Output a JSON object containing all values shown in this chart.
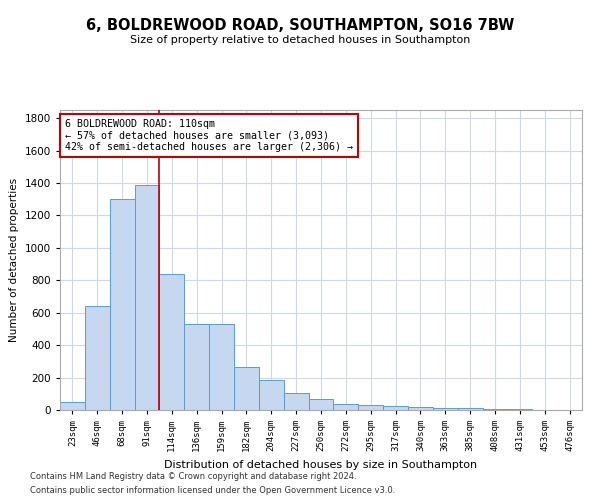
{
  "title": "6, BOLDREWOOD ROAD, SOUTHAMPTON, SO16 7BW",
  "subtitle": "Size of property relative to detached houses in Southampton",
  "xlabel": "Distribution of detached houses by size in Southampton",
  "ylabel": "Number of detached properties",
  "property_label": "6 BOLDREWOOD ROAD: 110sqm",
  "annotation_line1": "← 57% of detached houses are smaller (3,093)",
  "annotation_line2": "42% of semi-detached houses are larger (2,306) →",
  "footer_line1": "Contains HM Land Registry data © Crown copyright and database right 2024.",
  "footer_line2": "Contains public sector information licensed under the Open Government Licence v3.0.",
  "bar_color": "#c5d8f0",
  "bar_edge_color": "#5b9bd5",
  "vline_color": "#c00000",
  "annotation_box_color": "#c00000",
  "background_color": "#ffffff",
  "grid_color": "#d0d8e8",
  "categories": [
    "23sqm",
    "46sqm",
    "68sqm",
    "91sqm",
    "114sqm",
    "136sqm",
    "159sqm",
    "182sqm",
    "204sqm",
    "227sqm",
    "250sqm",
    "272sqm",
    "295sqm",
    "317sqm",
    "340sqm",
    "363sqm",
    "385sqm",
    "408sqm",
    "431sqm",
    "453sqm",
    "476sqm"
  ],
  "values": [
    50,
    640,
    1300,
    1390,
    840,
    530,
    530,
    265,
    185,
    105,
    65,
    35,
    30,
    25,
    20,
    15,
    10,
    8,
    5,
    3,
    3
  ],
  "ylim": [
    0,
    1850
  ],
  "yticks": [
    0,
    200,
    400,
    600,
    800,
    1000,
    1200,
    1400,
    1600,
    1800
  ],
  "vline_x_index": 3.5
}
